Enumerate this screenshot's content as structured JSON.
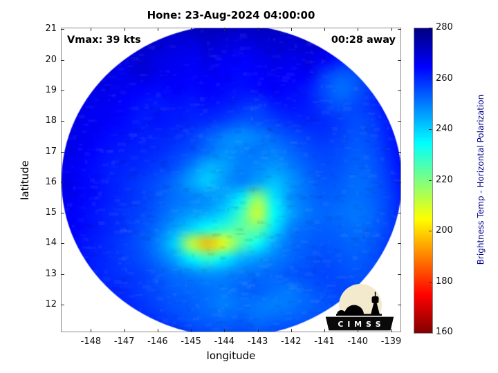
{
  "annotations": {
    "vmax": "Vmax: 39 kts",
    "eta": "00:28 away"
  },
  "logo": {
    "text": "C I M S S"
  },
  "colors": {
    "colorbar_label_text": "#00008b",
    "axis_border": "#8a8a8a",
    "tick_mark": "#2b2b2b",
    "background": "#ffffff"
  },
  "chart_data": {
    "type": "heatmap",
    "title": "Hone: 23-Aug-2024 04:00:00",
    "xlabel": "longitude",
    "ylabel": "latitude",
    "value_label": "Brightness Temp - Horizontal Polarization",
    "value_range": [
      160,
      280
    ],
    "colormap": "jet_reversed_high_is_dark_blue",
    "xlim": [
      -148.9,
      -138.7
    ],
    "ylim": [
      11.1,
      21.05
    ],
    "xticks": [
      -148,
      -147,
      -146,
      -145,
      -144,
      -143,
      -142,
      -141,
      -140,
      -139
    ],
    "yticks": [
      12,
      13,
      14,
      15,
      16,
      17,
      18,
      19,
      20,
      21
    ],
    "colorbar_ticks": [
      160,
      180,
      200,
      220,
      240,
      260,
      280
    ],
    "annotations": [
      "Vmax: 39 kts",
      "00:28 away"
    ],
    "swath": {
      "center_lon": -143.78,
      "center_lat": 16.05,
      "radius_deg": 5.1
    },
    "grid": {
      "lon_start": -149.0,
      "lon_step": 0.5,
      "lat_start": 21.0,
      "lat_step": -0.5,
      "values": [
        [
          273,
          272,
          274,
          272,
          271,
          273,
          272,
          271,
          272,
          273,
          272,
          271,
          272,
          272,
          271,
          273,
          272,
          271,
          272,
          273,
          272,
          272
        ],
        [
          272,
          271,
          272,
          270,
          269,
          271,
          270,
          269,
          268,
          270,
          269,
          268,
          269,
          270,
          269,
          270,
          269,
          266,
          268,
          270,
          271,
          272
        ],
        [
          272,
          270,
          271,
          269,
          268,
          270,
          268,
          267,
          266,
          268,
          266,
          265,
          266,
          268,
          267,
          268,
          266,
          262,
          260,
          265,
          270,
          272
        ],
        [
          271,
          270,
          270,
          268,
          267,
          269,
          267,
          266,
          265,
          266,
          265,
          264,
          265,
          266,
          265,
          266,
          258,
          254,
          256,
          262,
          268,
          271
        ],
        [
          271,
          269,
          268,
          267,
          266,
          265,
          264,
          265,
          264,
          265,
          264,
          263,
          264,
          265,
          264,
          262,
          256,
          252,
          255,
          260,
          266,
          270
        ],
        [
          270,
          268,
          267,
          266,
          265,
          263,
          262,
          263,
          262,
          263,
          262,
          260,
          258,
          262,
          263,
          262,
          258,
          255,
          257,
          260,
          265,
          269
        ],
        [
          270,
          268,
          266,
          265,
          264,
          262,
          263,
          262,
          261,
          260,
          258,
          255,
          256,
          258,
          260,
          261,
          260,
          258,
          256,
          258,
          263,
          268
        ],
        [
          269,
          267,
          266,
          264,
          263,
          262,
          261,
          260,
          258,
          254,
          250,
          248,
          250,
          253,
          256,
          258,
          259,
          257,
          255,
          257,
          262,
          267
        ],
        [
          269,
          267,
          265,
          263,
          262,
          261,
          260,
          258,
          256,
          252,
          248,
          250,
          251,
          250,
          253,
          256,
          257,
          256,
          254,
          256,
          261,
          266
        ],
        [
          268,
          266,
          264,
          262,
          261,
          260,
          258,
          256,
          250,
          244,
          246,
          250,
          249,
          247,
          250,
          254,
          256,
          255,
          253,
          255,
          260,
          265
        ],
        [
          268,
          266,
          264,
          262,
          260,
          258,
          256,
          252,
          246,
          241,
          247,
          250,
          246,
          242,
          247,
          252,
          255,
          254,
          252,
          254,
          259,
          264
        ],
        [
          268,
          266,
          264,
          262,
          260,
          258,
          255,
          252,
          250,
          248,
          245,
          237,
          218,
          238,
          248,
          252,
          254,
          253,
          252,
          254,
          258,
          264
        ],
        [
          267,
          265,
          263,
          261,
          259,
          257,
          254,
          250,
          247,
          245,
          240,
          228,
          210,
          235,
          246,
          251,
          253,
          252,
          251,
          253,
          258,
          263
        ],
        [
          267,
          265,
          263,
          261,
          259,
          256,
          252,
          246,
          240,
          234,
          229,
          224,
          222,
          238,
          250,
          253,
          254,
          253,
          252,
          254,
          258,
          263
        ],
        [
          266,
          264,
          262,
          260,
          258,
          255,
          250,
          240,
          212,
          197,
          207,
          224,
          234,
          246,
          252,
          254,
          255,
          254,
          253,
          255,
          259,
          264
        ],
        [
          266,
          264,
          262,
          260,
          258,
          256,
          252,
          246,
          236,
          229,
          236,
          244,
          247,
          250,
          253,
          255,
          256,
          255,
          254,
          256,
          260,
          264
        ],
        [
          266,
          264,
          262,
          260,
          259,
          258,
          255,
          252,
          250,
          248,
          249,
          251,
          252,
          253,
          255,
          256,
          257,
          256,
          255,
          257,
          261,
          265
        ],
        [
          267,
          265,
          263,
          261,
          260,
          258,
          256,
          254,
          253,
          252,
          251,
          253,
          254,
          252,
          251,
          254,
          256,
          257,
          256,
          258,
          262,
          266
        ],
        [
          268,
          266,
          264,
          262,
          261,
          259,
          257,
          255,
          254,
          252,
          250,
          252,
          251,
          250,
          251,
          253,
          255,
          256,
          257,
          259,
          263,
          267
        ],
        [
          269,
          267,
          266,
          264,
          263,
          261,
          259,
          257,
          255,
          254,
          253,
          254,
          252,
          253,
          254,
          255,
          256,
          257,
          258,
          260,
          264,
          268
        ],
        [
          270,
          269,
          268,
          266,
          265,
          264,
          262,
          260,
          258,
          257,
          256,
          257,
          256,
          257,
          258,
          259,
          260,
          261,
          262,
          263,
          266,
          269
        ]
      ]
    }
  }
}
